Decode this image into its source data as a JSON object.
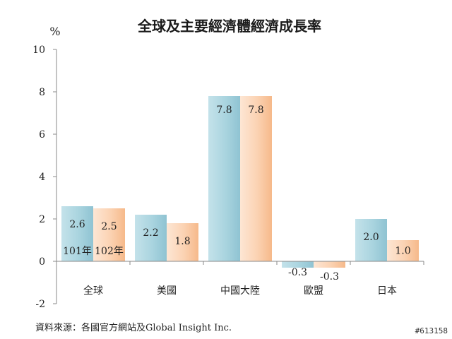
{
  "title": "全球及主要經濟體經濟成長率",
  "unit": "%",
  "source": "資料來源：各國官方網站及Global Insight Inc.",
  "image_code": "#613158",
  "chart_data": {
    "type": "bar",
    "title": "全球及主要經濟體經濟成長率",
    "ylabel": "%",
    "xlabel": "",
    "ylim": [
      -2,
      10
    ],
    "yticks": [
      -2,
      0,
      2,
      4,
      6,
      8,
      10
    ],
    "categories": [
      "全球",
      "美國",
      "中國大陸",
      "歐盟",
      "日本"
    ],
    "series": [
      {
        "name": "101年",
        "values": [
          2.6,
          2.2,
          7.8,
          -0.3,
          2.0
        ],
        "color": "#a9d4df"
      },
      {
        "name": "102年",
        "values": [
          2.5,
          1.8,
          7.8,
          -0.3,
          1.0
        ],
        "color": "#fbd2b2"
      }
    ],
    "value_labels": [
      [
        "2.6",
        "2.2",
        "7.8",
        "-0.3",
        "2.0"
      ],
      [
        "2.5",
        "1.8",
        "7.8",
        "-0.3",
        "1.0"
      ]
    ],
    "grid": false,
    "legend": "inside-first-bar-group"
  }
}
